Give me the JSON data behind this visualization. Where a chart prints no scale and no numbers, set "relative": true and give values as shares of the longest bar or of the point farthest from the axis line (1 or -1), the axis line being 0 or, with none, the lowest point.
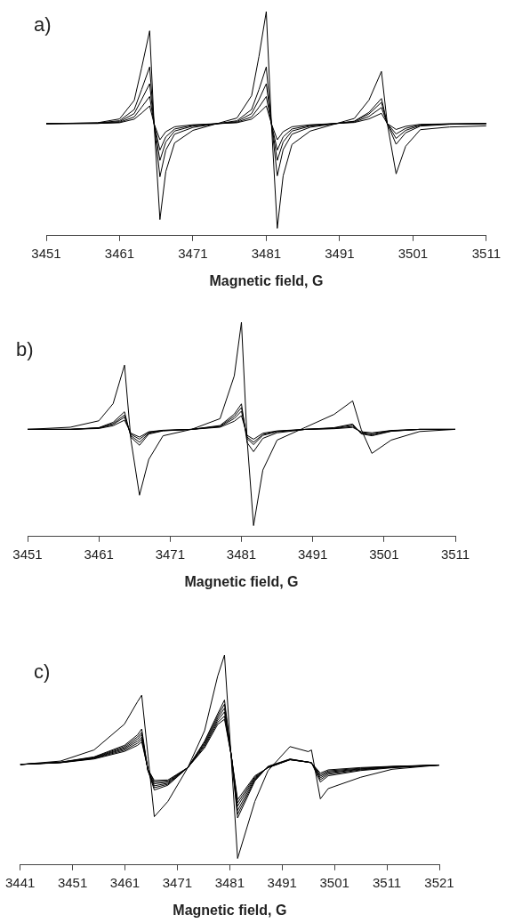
{
  "chart_data": [
    {
      "type": "line",
      "title": "a)",
      "xlabel": "Magnetic field, G",
      "relative": true,
      "legend": false,
      "grid": false,
      "marker": "none",
      "line_style": "solid",
      "xlim": [
        3451,
        3511
      ],
      "xticks": [
        3451,
        3461,
        3471,
        3481,
        3491,
        3501,
        3511
      ],
      "x": [
        3451,
        3458,
        3461,
        3463,
        3464,
        3465.1,
        3465.7,
        3466.5,
        3467.3,
        3468.5,
        3471,
        3477,
        3479,
        3480,
        3481,
        3481.7,
        3482.5,
        3483.3,
        3484.5,
        3487,
        3493,
        3495,
        3496.7,
        3497.5,
        3498.7,
        3500,
        3502,
        3506,
        3511
      ],
      "series": [
        {
          "color": "#000000",
          "values": [
            0.5,
            0.504,
            0.521,
            0.604,
            0.748,
            0.914,
            0.5,
            0.072,
            0.286,
            0.414,
            0.47,
            0.525,
            0.625,
            0.8,
            1.0,
            0.5,
            0.033,
            0.267,
            0.407,
            0.467,
            0.523,
            0.605,
            0.733,
            0.5,
            0.276,
            0.399,
            0.473,
            0.485,
            0.49
          ]
        },
        {
          "color": "#000000",
          "values": [
            0.5,
            0.503,
            0.513,
            0.563,
            0.652,
            0.753,
            0.5,
            0.263,
            0.382,
            0.453,
            0.483,
            0.513,
            0.563,
            0.652,
            0.753,
            0.5,
            0.267,
            0.384,
            0.453,
            0.484,
            0.511,
            0.55,
            0.612,
            0.5,
            0.408,
            0.459,
            0.489,
            0.497,
            0.5
          ]
        },
        {
          "color": "#000000",
          "values": [
            0.5,
            0.502,
            0.509,
            0.545,
            0.607,
            0.678,
            0.5,
            0.336,
            0.418,
            0.467,
            0.489,
            0.509,
            0.545,
            0.607,
            0.678,
            0.5,
            0.336,
            0.418,
            0.467,
            0.489,
            0.51,
            0.543,
            0.595,
            0.5,
            0.434,
            0.47,
            0.492,
            0.498,
            0.5
          ]
        },
        {
          "color": "#000000",
          "values": [
            0.5,
            0.501,
            0.506,
            0.53,
            0.573,
            0.621,
            0.5,
            0.382,
            0.441,
            0.476,
            0.492,
            0.506,
            0.53,
            0.573,
            0.621,
            0.5,
            0.382,
            0.441,
            0.476,
            0.492,
            0.507,
            0.532,
            0.572,
            0.5,
            0.454,
            0.479,
            0.494,
            0.499,
            0.5
          ]
        },
        {
          "color": "#000000",
          "values": [
            0.5,
            0.501,
            0.504,
            0.52,
            0.547,
            0.579,
            0.5,
            0.428,
            0.464,
            0.486,
            0.495,
            0.504,
            0.52,
            0.547,
            0.579,
            0.5,
            0.428,
            0.464,
            0.486,
            0.495,
            0.505,
            0.521,
            0.546,
            0.5,
            0.474,
            0.488,
            0.497,
            0.499,
            0.5
          ]
        }
      ]
    },
    {
      "type": "line",
      "title": "b)",
      "xlabel": "Magnetic field, G",
      "relative": true,
      "legend": false,
      "grid": false,
      "marker": "none",
      "line_style": "solid",
      "xlim": [
        3451,
        3511
      ],
      "xticks": [
        3451,
        3461,
        3471,
        3481,
        3491,
        3501,
        3511
      ],
      "x": [
        3451,
        3457,
        3461,
        3463,
        3464.6,
        3465.5,
        3466.7,
        3468,
        3470,
        3474,
        3478,
        3480,
        3481,
        3481.8,
        3482.7,
        3484,
        3486,
        3490,
        3494,
        3496.6,
        3497.8,
        3499.3,
        3502,
        3506,
        3511
      ],
      "series": [
        {
          "color": "#000000",
          "values": [
            0.5,
            0.51,
            0.54,
            0.62,
            0.8,
            0.45,
            0.193,
            0.36,
            0.47,
            0.5,
            0.55,
            0.75,
            1.0,
            0.45,
            0.051,
            0.31,
            0.45,
            0.51,
            0.57,
            0.633,
            0.5,
            0.388,
            0.45,
            0.49,
            0.5
          ]
        },
        {
          "color": "#000000",
          "values": [
            0.5,
            0.5,
            0.508,
            0.533,
            0.582,
            0.463,
            0.426,
            0.478,
            0.493,
            0.5,
            0.518,
            0.571,
            0.619,
            0.438,
            0.396,
            0.458,
            0.484,
            0.5,
            0.508,
            0.525,
            0.479,
            0.47,
            0.491,
            0.5,
            0.5
          ]
        },
        {
          "color": "#000000",
          "values": [
            0.5,
            0.5,
            0.507,
            0.527,
            0.567,
            0.47,
            0.44,
            0.482,
            0.494,
            0.5,
            0.515,
            0.561,
            0.602,
            0.457,
            0.429,
            0.472,
            0.489,
            0.5,
            0.506,
            0.52,
            0.482,
            0.474,
            0.492,
            0.5,
            0.5
          ]
        },
        {
          "color": "#000000",
          "values": [
            0.5,
            0.5,
            0.506,
            0.523,
            0.557,
            0.477,
            0.454,
            0.486,
            0.495,
            0.5,
            0.513,
            0.551,
            0.585,
            0.464,
            0.44,
            0.476,
            0.491,
            0.5,
            0.504,
            0.514,
            0.485,
            0.479,
            0.494,
            0.5,
            0.5
          ]
        },
        {
          "color": "#000000",
          "values": [
            0.5,
            0.5,
            0.504,
            0.517,
            0.543,
            0.482,
            0.464,
            0.489,
            0.496,
            0.5,
            0.51,
            0.538,
            0.564,
            0.472,
            0.454,
            0.482,
            0.493,
            0.5,
            0.503,
            0.509,
            0.489,
            0.484,
            0.495,
            0.5,
            0.5
          ]
        }
      ]
    },
    {
      "type": "line",
      "title": "c)",
      "xlabel": "Magnetic field, G",
      "relative": true,
      "legend": false,
      "grid": false,
      "marker": "none",
      "line_style": "solid",
      "xlim": [
        3441,
        3521
      ],
      "xticks": [
        3441,
        3451,
        3461,
        3471,
        3481,
        3491,
        3501,
        3511,
        3521
      ],
      "x": [
        3441,
        3448.7,
        3455.1,
        3460.9,
        3463.4,
        3464.2,
        3465.4,
        3466.6,
        3469.2,
        3473,
        3476.2,
        3478.7,
        3480,
        3481.3,
        3482.5,
        3485.8,
        3488.3,
        3492.5,
        3496,
        3496.6,
        3498.3,
        3499.8,
        3506,
        3512,
        3521
      ],
      "series": [
        {
          "color": "#000000",
          "values": [
            0.479,
            0.495,
            0.548,
            0.671,
            0.778,
            0.809,
            0.52,
            0.23,
            0.303,
            0.464,
            0.64,
            0.9,
            1.0,
            0.5,
            0.031,
            0.303,
            0.449,
            0.564,
            0.54,
            0.548,
            0.315,
            0.364,
            0.418,
            0.456,
            0.476
          ]
        },
        {
          "color": "#000000",
          "values": [
            0.479,
            0.49,
            0.515,
            0.57,
            0.62,
            0.648,
            0.45,
            0.357,
            0.38,
            0.464,
            0.59,
            0.72,
            0.786,
            0.52,
            0.224,
            0.4,
            0.47,
            0.505,
            0.49,
            0.488,
            0.395,
            0.425,
            0.45,
            0.463,
            0.476
          ]
        },
        {
          "color": "#000000",
          "values": [
            0.479,
            0.489,
            0.513,
            0.564,
            0.61,
            0.632,
            0.45,
            0.368,
            0.385,
            0.464,
            0.585,
            0.71,
            0.766,
            0.52,
            0.242,
            0.405,
            0.468,
            0.504,
            0.49,
            0.488,
            0.406,
            0.432,
            0.453,
            0.465,
            0.476
          ]
        },
        {
          "color": "#000000",
          "values": [
            0.479,
            0.489,
            0.511,
            0.558,
            0.6,
            0.622,
            0.45,
            0.377,
            0.39,
            0.464,
            0.578,
            0.7,
            0.747,
            0.52,
            0.26,
            0.41,
            0.466,
            0.503,
            0.49,
            0.487,
            0.415,
            0.438,
            0.456,
            0.467,
            0.476
          ]
        },
        {
          "color": "#000000",
          "values": [
            0.479,
            0.488,
            0.509,
            0.553,
            0.59,
            0.609,
            0.45,
            0.387,
            0.395,
            0.464,
            0.572,
            0.69,
            0.729,
            0.52,
            0.28,
            0.415,
            0.465,
            0.502,
            0.49,
            0.487,
            0.423,
            0.443,
            0.458,
            0.468,
            0.476
          ]
        },
        {
          "color": "#000000",
          "values": [
            0.479,
            0.488,
            0.507,
            0.547,
            0.58,
            0.599,
            0.455,
            0.395,
            0.4,
            0.464,
            0.565,
            0.68,
            0.709,
            0.52,
            0.296,
            0.42,
            0.464,
            0.502,
            0.49,
            0.486,
            0.43,
            0.448,
            0.461,
            0.469,
            0.476
          ]
        },
        {
          "color": "#000000",
          "values": [
            0.479,
            0.487,
            0.505,
            0.541,
            0.57,
            0.587,
            0.455,
            0.403,
            0.405,
            0.464,
            0.558,
            0.67,
            0.694,
            0.52,
            0.311,
            0.425,
            0.463,
            0.501,
            0.49,
            0.486,
            0.438,
            0.453,
            0.464,
            0.47,
            0.476
          ]
        }
      ]
    }
  ]
}
